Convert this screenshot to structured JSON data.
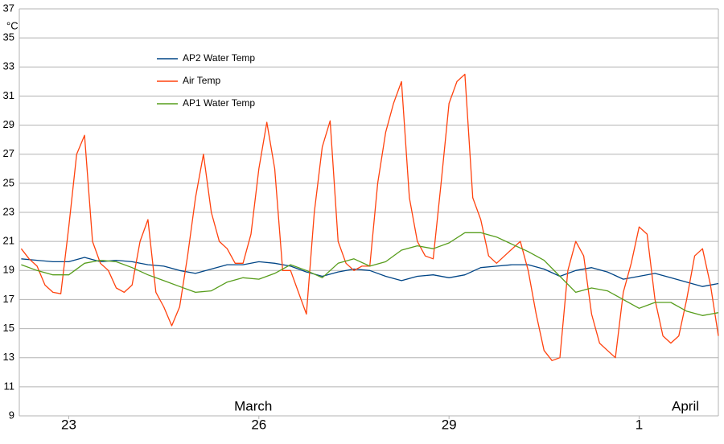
{
  "chart_data": {
    "type": "line",
    "y_unit": "°C",
    "xlim": [
      22.22,
      33.25
    ],
    "xticks": [
      23,
      26,
      29,
      {
        "value": 32,
        "label": "1"
      }
    ],
    "month_ticks": [
      {
        "value": 25.91,
        "label": "March"
      },
      {
        "value": 32.73,
        "label": "April"
      }
    ],
    "ylim": [
      9,
      37
    ],
    "yticks": [
      9,
      11,
      13,
      15,
      17,
      19,
      21,
      23,
      25,
      27,
      29,
      31,
      33,
      35,
      37
    ],
    "grid": true,
    "legend": "upper left",
    "series": [
      {
        "name": "AP2 Water Temp",
        "color": "#004586",
        "x": [
          22.25,
          22.5,
          22.75,
          23,
          23.25,
          23.5,
          23.75,
          24,
          24.25,
          24.5,
          24.75,
          25,
          25.25,
          25.5,
          25.75,
          26,
          26.25,
          26.5,
          26.75,
          27,
          27.25,
          27.5,
          27.75,
          28,
          28.25,
          28.5,
          28.75,
          29,
          29.25,
          29.5,
          29.75,
          30,
          30.25,
          30.5,
          30.75,
          31,
          31.25,
          31.5,
          31.75,
          32,
          32.25,
          32.5,
          32.75,
          33,
          33.25
        ],
        "values": [
          19.8,
          19.7,
          19.6,
          19.6,
          19.9,
          19.6,
          19.7,
          19.6,
          19.4,
          19.3,
          19.0,
          18.8,
          19.1,
          19.4,
          19.4,
          19.6,
          19.5,
          19.3,
          18.9,
          18.6,
          18.9,
          19.1,
          19.0,
          18.6,
          18.3,
          18.6,
          18.7,
          18.5,
          18.7,
          19.2,
          19.3,
          19.4,
          19.4,
          19.1,
          18.6,
          19.0,
          19.2,
          18.9,
          18.4,
          18.6,
          18.8,
          18.5,
          18.2,
          17.9,
          18.1
        ]
      },
      {
        "name": "Air Temp",
        "color": "#ff420e",
        "x": [
          22.25,
          22.375,
          22.5,
          22.625,
          22.75,
          22.875,
          23,
          23.125,
          23.25,
          23.375,
          23.5,
          23.625,
          23.75,
          23.875,
          24,
          24.125,
          24.25,
          24.375,
          24.5,
          24.625,
          24.75,
          24.875,
          25,
          25.125,
          25.25,
          25.375,
          25.5,
          25.625,
          25.75,
          25.875,
          26,
          26.125,
          26.25,
          26.375,
          26.5,
          26.625,
          26.75,
          26.875,
          27,
          27.125,
          27.25,
          27.375,
          27.5,
          27.625,
          27.75,
          27.875,
          28,
          28.125,
          28.25,
          28.375,
          28.5,
          28.625,
          28.75,
          28.875,
          29,
          29.125,
          29.25,
          29.375,
          29.5,
          29.625,
          29.75,
          29.875,
          30,
          30.125,
          30.25,
          30.375,
          30.5,
          30.625,
          30.75,
          30.875,
          31,
          31.125,
          31.25,
          31.375,
          31.5,
          31.625,
          31.75,
          31.875,
          32,
          32.125,
          32.25,
          32.375,
          32.5,
          32.625,
          32.75,
          32.875,
          33,
          33.125,
          33.25
        ],
        "values": [
          20.5,
          19.8,
          19.3,
          18,
          17.5,
          17.4,
          22,
          27,
          28.3,
          21,
          19.5,
          19,
          17.8,
          17.5,
          18,
          21,
          22.5,
          17.5,
          16.5,
          15.2,
          16.5,
          20,
          24,
          27,
          23,
          21,
          20.5,
          19.5,
          19.5,
          21.5,
          26,
          29.2,
          26,
          19,
          19,
          17.5,
          16,
          23,
          27.5,
          29.3,
          21,
          19.5,
          19,
          19.3,
          19.3,
          25,
          28.5,
          30.5,
          32,
          24,
          21,
          20,
          19.8,
          25,
          30.5,
          32,
          32.5,
          24,
          22.5,
          20,
          19.5,
          20,
          20.5,
          21,
          19,
          16,
          13.5,
          12.8,
          13,
          19,
          21,
          20,
          16,
          14,
          13.5,
          13,
          17.5,
          19.5,
          22,
          21.5,
          17,
          14.5,
          14,
          14.5,
          17,
          20,
          20.5,
          18,
          14.5
        ]
      },
      {
        "name": "AP1 Water Temp",
        "color": "#579d1c",
        "x": [
          22.25,
          22.5,
          22.75,
          23,
          23.25,
          23.5,
          23.75,
          24,
          24.25,
          24.5,
          24.75,
          25,
          25.25,
          25.5,
          25.75,
          26,
          26.25,
          26.5,
          26.75,
          27,
          27.25,
          27.5,
          27.75,
          28,
          28.25,
          28.5,
          28.75,
          29,
          29.25,
          29.5,
          29.75,
          30,
          30.25,
          30.5,
          30.75,
          31,
          31.25,
          31.5,
          31.75,
          32,
          32.25,
          32.5,
          32.75,
          33,
          33.25
        ],
        "values": [
          19.4,
          19.0,
          18.7,
          18.7,
          19.5,
          19.7,
          19.6,
          19.2,
          18.7,
          18.3,
          17.9,
          17.5,
          17.6,
          18.2,
          18.5,
          18.4,
          18.8,
          19.4,
          19.0,
          18.5,
          19.5,
          19.8,
          19.3,
          19.6,
          20.4,
          20.7,
          20.5,
          20.9,
          21.6,
          21.6,
          21.3,
          20.8,
          20.3,
          19.7,
          18.6,
          17.5,
          17.8,
          17.6,
          17.0,
          16.4,
          16.8,
          16.8,
          16.2,
          15.9,
          16.1
        ]
      }
    ]
  }
}
